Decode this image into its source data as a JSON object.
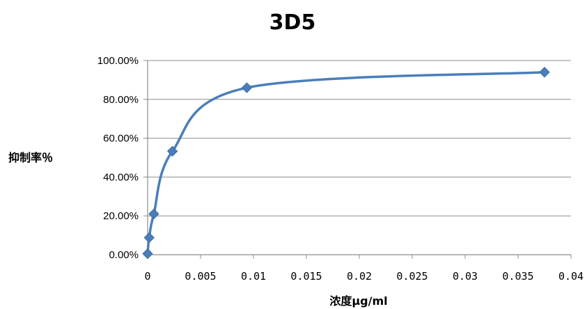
{
  "chart_data": {
    "type": "scatter",
    "title": "3D5",
    "xlabel": "浓度μg/ml",
    "ylabel": "抑制率％",
    "xlim": [
      0,
      0.04
    ],
    "ylim": [
      0,
      1.0
    ],
    "x_ticks": [
      "0",
      "0.005",
      "0.01",
      "0.015",
      "0.02",
      "0.025",
      "0.03",
      "0.035",
      "0.04"
    ],
    "y_ticks": [
      "0.00%",
      "20.00%",
      "40.00%",
      "60.00%",
      "80.00%",
      "100.00%"
    ],
    "grid": "horizontal",
    "series": [
      {
        "x": [
          0,
          0.0001465,
          0.000586,
          0.002344,
          0.009375,
          0.0375
        ],
        "y": [
          0.005,
          0.088,
          0.21,
          0.533,
          0.86,
          0.94
        ]
      }
    ],
    "colors": {
      "line": "#4a7ebb",
      "marker": "#4a7ebb",
      "grid": "#8c8c8c"
    }
  }
}
